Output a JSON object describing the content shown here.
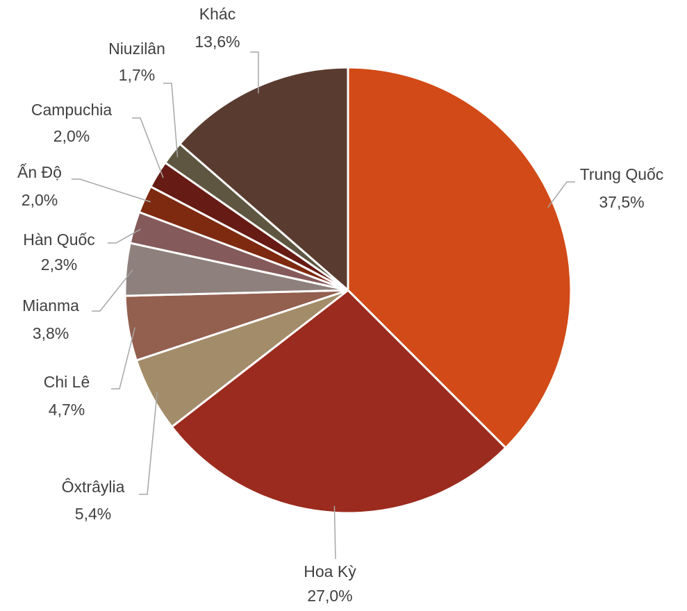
{
  "chart_data": {
    "type": "pie",
    "categories": [
      "Trung Quốc",
      "Hoa Kỳ",
      "Ôxtrâylia",
      "Chi Lê",
      "Mianma",
      "Hàn Quốc",
      "Ấn Độ",
      "Campuchia",
      "Niuzilân",
      "Khác"
    ],
    "values": [
      37.5,
      27.0,
      5.4,
      4.7,
      3.8,
      2.3,
      2.0,
      2.0,
      1.7,
      13.6
    ],
    "value_labels": [
      "37,5%",
      "27,0%",
      "5,4%",
      "4,7%",
      "3,8%",
      "2,3%",
      "2,0%",
      "2,0%",
      "1,7%",
      "13,6%"
    ],
    "colors": [
      "#d24a17",
      "#9b2b1e",
      "#a38c6a",
      "#935f4f",
      "#8e807c",
      "#855a5a",
      "#7e2a10",
      "#661b14",
      "#5e5641",
      "#5a3b30"
    ]
  }
}
